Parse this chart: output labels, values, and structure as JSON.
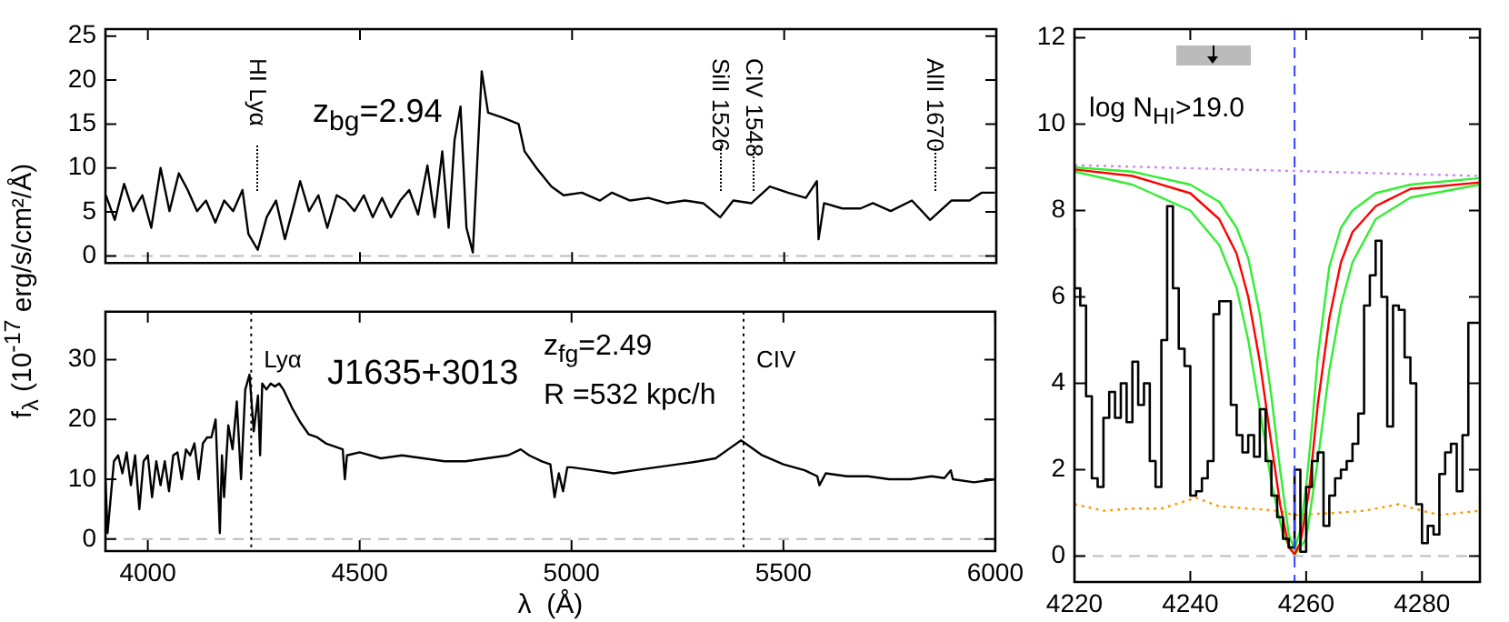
{
  "chart_data": [
    {
      "type": "line",
      "xlim": [
        3900,
        6000
      ],
      "ylim": [
        -0.8,
        25.8
      ],
      "xticks": [
        4000,
        4500,
        5000,
        5500,
        6000
      ],
      "yticks": [
        0,
        5,
        10,
        15,
        20,
        25
      ],
      "tick_labels": "y",
      "grid": false,
      "legend": false,
      "marker": "none",
      "ylabel": "f$_{λ}$   (10$^{-17}$ erg/s/cm²/Å)",
      "series": [
        {
          "color": "#000000",
          "x": [
            3901,
            3922,
            3944,
            3965,
            3987,
            4008,
            4030,
            4051,
            4073,
            4094,
            4116,
            4137,
            4159,
            4180,
            4201,
            4223,
            4237,
            4259,
            4280,
            4302,
            4323,
            4344,
            4359,
            4380,
            4402,
            4423,
            4445,
            4466,
            4487,
            4509,
            4530,
            4552,
            4573,
            4595,
            4616,
            4637,
            4659,
            4676,
            4694,
            4709,
            4723,
            4737,
            4751,
            4766,
            4787,
            4802,
            4838,
            4874,
            4888,
            4916,
            4951,
            4980,
            5023,
            5066,
            5094,
            5137,
            5180,
            5223,
            5266,
            5309,
            5349,
            5380,
            5423,
            5466,
            5509,
            5551,
            5577,
            5581,
            5594,
            5637,
            5680,
            5709,
            5751,
            5801,
            5844,
            5894,
            5937,
            5966,
            5997
          ],
          "values": [
            6.9,
            4.1,
            8.2,
            5.1,
            6.9,
            3.2,
            10,
            5.1,
            9.4,
            7.5,
            5.1,
            6.3,
            3.8,
            6.3,
            5.1,
            7.5,
            2.5,
            0.7,
            4.4,
            6.3,
            1.9,
            5.7,
            8.5,
            5.1,
            6.9,
            3.2,
            6.9,
            6.3,
            5.1,
            6.9,
            4.4,
            6.6,
            4.4,
            6.3,
            7.5,
            4.7,
            10.3,
            4.4,
            11.9,
            3.2,
            13.2,
            17,
            3.2,
            0.4,
            21,
            16.3,
            15.7,
            15,
            11.9,
            10,
            7.9,
            6.9,
            7.2,
            6.3,
            7.2,
            6.3,
            6.6,
            6,
            6.3,
            6,
            4.4,
            6.3,
            6,
            7.9,
            7.2,
            6.6,
            8.5,
            1.9,
            6,
            5.4,
            5.4,
            6,
            5.1,
            6.3,
            4.1,
            6.3,
            6.3,
            7.2,
            7.2
          ]
        }
      ],
      "ref_lines": [
        {
          "axis": "y",
          "value": 0,
          "color": "#bbbbbb",
          "line_style": "dashed"
        }
      ],
      "annotations": [
        "z$_{bg}$=2.94",
        "HI  Lyα",
        "SiII 1526",
        "CIV 1548",
        "AlII 1670"
      ]
    },
    {
      "type": "line",
      "xlim": [
        3900,
        6000
      ],
      "ylim": [
        -2,
        38
      ],
      "xticks": [
        4000,
        4500,
        5000,
        5500,
        6000
      ],
      "yticks": [
        0,
        10,
        20,
        30
      ],
      "grid": false,
      "legend": false,
      "marker": "none",
      "xlabel": "λ  (Å)",
      "series": [
        {
          "color": "#000000",
          "x": [
            3900,
            3905,
            3910,
            3920,
            3930,
            3940,
            3950,
            3960,
            3970,
            3980,
            3990,
            4000,
            4010,
            4020,
            4030,
            4040,
            4050,
            4060,
            4070,
            4080,
            4090,
            4100,
            4110,
            4120,
            4130,
            4140,
            4150,
            4160,
            4170,
            4175,
            4180,
            4190,
            4200,
            4210,
            4220,
            4230,
            4240,
            4250,
            4260,
            4265,
            4270,
            4280,
            4290,
            4300,
            4310,
            4320,
            4340,
            4360,
            4380,
            4400,
            4420,
            4440,
            4460,
            4465,
            4470,
            4500,
            4550,
            4600,
            4650,
            4700,
            4750,
            4800,
            4850,
            4880,
            4900,
            4930,
            4950,
            4960,
            4970,
            4980,
            4990,
            5000,
            5050,
            5100,
            5150,
            5200,
            5250,
            5300,
            5340,
            5370,
            5400,
            5420,
            5450,
            5500,
            5550,
            5580,
            5585,
            5600,
            5650,
            5700,
            5750,
            5800,
            5850,
            5880,
            5895,
            5900,
            5950,
            6000
          ],
          "values": [
            10,
            1,
            5,
            13,
            14,
            11,
            14.5,
            9,
            14,
            5,
            13,
            14,
            7,
            13,
            9,
            13,
            8,
            14,
            14.5,
            10,
            15,
            14,
            16,
            10,
            16,
            17,
            17,
            20,
            1,
            14,
            7,
            19,
            15,
            23,
            10,
            25,
            27.5,
            18,
            24,
            14,
            26,
            25,
            26,
            25.5,
            26,
            25,
            22,
            19.5,
            17.5,
            17,
            16,
            15.5,
            15,
            10,
            14,
            14.5,
            13.5,
            14,
            13.5,
            13,
            13,
            13.5,
            14,
            15,
            14,
            13,
            12.5,
            7,
            11,
            8,
            12,
            12,
            11.5,
            11,
            11.5,
            12,
            12.5,
            13,
            13.5,
            15,
            16.5,
            15.5,
            14,
            12.5,
            11.5,
            10.5,
            9,
            11,
            10.5,
            10.5,
            10,
            10,
            10.5,
            10.2,
            11.5,
            10,
            9.5,
            10
          ]
        }
      ],
      "ref_lines": [
        {
          "axis": "y",
          "value": 0,
          "color": "#bbbbbb",
          "line_style": "dashed"
        },
        {
          "axis": "x",
          "value": 4244,
          "label": "Lyα",
          "color": "#000000",
          "line_style": "dotted"
        },
        {
          "axis": "x",
          "value": 5406,
          "label": "CIV",
          "color": "#000000",
          "line_style": "dotted"
        }
      ],
      "annotations": [
        "J1635+3013",
        "z$_{fg}$=2.49",
        "R =532 kpc/h"
      ]
    },
    {
      "type": "line",
      "xlim": [
        4220,
        4290
      ],
      "ylim": [
        -0.6,
        12.2
      ],
      "xticks": [
        4220,
        4240,
        4260,
        4280
      ],
      "yticks": [
        0,
        2,
        4,
        6,
        8,
        10,
        12
      ],
      "grid": false,
      "legend": false,
      "marker": "none",
      "series": [
        {
          "type": "step",
          "color": "#000000",
          "x": [
            4220,
            4221,
            4222,
            4223,
            4224,
            4225,
            4226,
            4227,
            4228,
            4229,
            4230,
            4231,
            4232,
            4233,
            4234,
            4235,
            4236,
            4237,
            4238,
            4239,
            4240,
            4241,
            4242,
            4243,
            4244,
            4245,
            4246,
            4247,
            4248,
            4249,
            4250,
            4251,
            4252,
            4253,
            4254,
            4255,
            4256,
            4257,
            4258,
            4259,
            4260,
            4261,
            4262,
            4263,
            4264,
            4265,
            4266,
            4267,
            4268,
            4269,
            4270,
            4271,
            4272,
            4273,
            4274,
            4275,
            4276,
            4277,
            4278,
            4279,
            4280,
            4281,
            4282,
            4283,
            4284,
            4285,
            4286,
            4287,
            4288,
            4289,
            4290
          ],
          "values": [
            7.6,
            6.2,
            5.8,
            3.7,
            1.8,
            1.6,
            3.2,
            3.8,
            3.2,
            4,
            3.1,
            4.5,
            3.5,
            4,
            2.2,
            1.6,
            5,
            8.1,
            6.2,
            4.8,
            4.4,
            1.4,
            1.5,
            1.8,
            2.2,
            5.6,
            5.9,
            5.9,
            3.5,
            2.8,
            2.4,
            2.8,
            2.3,
            3.4,
            2.2,
            1.4,
            0.9,
            0.4,
            0.2,
            2,
            0.1,
            1.6,
            2.2,
            2.4,
            0.7,
            1.4,
            1.8,
            2,
            2.2,
            2.6,
            3.3,
            5.8,
            6.5,
            7.3,
            6,
            3,
            5.8,
            5.7,
            4.6,
            4,
            1.2,
            0.3,
            0.7,
            0.5,
            1.9,
            2.4,
            2.6,
            1.5,
            2.8,
            5.4,
            5.4
          ]
        },
        {
          "color": "#ff0000",
          "x": [
            4220,
            4230,
            4240,
            4245,
            4248,
            4250,
            4252,
            4254,
            4255.5,
            4257,
            4258,
            4259,
            4260.5,
            4262,
            4264,
            4266,
            4268,
            4272,
            4278,
            4290
          ],
          "values": [
            8.95,
            8.8,
            8.4,
            7.8,
            7,
            6,
            4.5,
            2.6,
            1.2,
            0.2,
            0.05,
            0.3,
            1.5,
            3.5,
            5.5,
            6.8,
            7.5,
            8.1,
            8.5,
            8.65
          ]
        },
        {
          "color": "#33ee33",
          "x": [
            4220,
            4230,
            4240,
            4245,
            4248,
            4250,
            4252,
            4254,
            4256,
            4258,
            4260,
            4262,
            4264,
            4266,
            4268,
            4272,
            4278,
            4290
          ],
          "values": [
            8.9,
            8.6,
            8,
            7.2,
            6.2,
            5,
            3.4,
            1.7,
            0.5,
            0.02,
            0.4,
            2.2,
            4.3,
            5.8,
            6.8,
            7.8,
            8.3,
            8.6
          ]
        },
        {
          "color": "#33ee33",
          "x": [
            4220,
            4230,
            4240,
            4245,
            4248,
            4250,
            4252,
            4254,
            4255.5,
            4257,
            4258,
            4259,
            4260,
            4261,
            4262,
            4264,
            4266,
            4268,
            4272,
            4278,
            4290
          ],
          "values": [
            9,
            8.9,
            8.6,
            8.2,
            7.6,
            6.9,
            5.6,
            3.7,
            2,
            0.5,
            0.15,
            0.6,
            1.6,
            3,
            4.6,
            6.7,
            7.6,
            8,
            8.4,
            8.6,
            8.75
          ]
        },
        {
          "color": "#cc88ee",
          "line_style": "dotted",
          "x": [
            4220,
            4290
          ],
          "values": [
            9.05,
            8.8
          ]
        },
        {
          "color": "#ff9900",
          "line_style": "dotted",
          "x": [
            4220,
            4225,
            4230,
            4235,
            4241,
            4245,
            4250,
            4255,
            4258,
            4265,
            4270,
            4276,
            4280,
            4283,
            4290
          ],
          "values": [
            1.2,
            1.05,
            1.1,
            1.1,
            1.35,
            1.15,
            1.1,
            1.05,
            0.95,
            1,
            1.05,
            1.2,
            1.05,
            0.95,
            1.05
          ]
        }
      ],
      "ref_lines": [
        {
          "axis": "y",
          "value": 0,
          "color": "#bbbbbb",
          "line_style": "dashed"
        },
        {
          "axis": "x",
          "value": 4258,
          "color": "#3344ff",
          "line_style": "dashed"
        }
      ],
      "annotations": [
        "log N$_{HI}$>19.0"
      ]
    }
  ]
}
